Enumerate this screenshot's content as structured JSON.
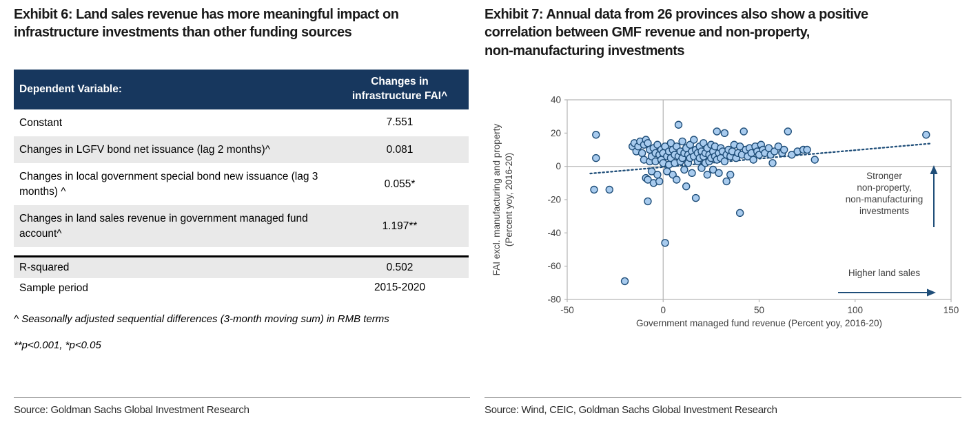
{
  "left": {
    "title_lines": [
      "Exhibit 6: Land sales revenue has more meaningful impact on",
      "infrastructure investments than other funding sources"
    ],
    "table": {
      "header": {
        "label": "Dependent Variable:",
        "value": "Changes in infrastructure FAI^"
      },
      "rows": [
        {
          "label": "Constant",
          "value": "7.551"
        },
        {
          "label": "Changes in LGFV bond net issuance (lag 2 months)^",
          "value": "0.081"
        },
        {
          "label": "Changes in local government special bond new issuance (lag 3 months) ^",
          "value": "0.055*"
        },
        {
          "label": "Changes in land sales revenue in government managed fund account^",
          "value": "1.197**"
        }
      ],
      "stats": [
        {
          "label": "R-squared",
          "value": "0.502"
        },
        {
          "label": "Sample period",
          "value": "2015-2020"
        }
      ]
    },
    "footnotes": [
      "^ Seasonally adjusted sequential differences (3-month moving sum) in RMB terms",
      "**p<0.001, *p<0.05"
    ],
    "source": "Source: Goldman Sachs Global Investment Research"
  },
  "right": {
    "title_lines": [
      "Exhibit 7: Annual data from 26 provinces also show a positive",
      "correlation between GMF revenue and non-property,",
      "non-manufacturing investments"
    ],
    "source": "Source: Wind, CEIC, Goldman Sachs Global Investment Research"
  },
  "chart_data": {
    "type": "scatter",
    "title": "",
    "xlabel": "Government managed fund revenue (Percent yoy, 2016-20)",
    "ylabel_lines": [
      "FAI excl. manufacturing and property",
      "(Percent yoy, 2016-20)"
    ],
    "xlim": [
      -50,
      150
    ],
    "ylim": [
      -80,
      40
    ],
    "xticks": [
      -50,
      0,
      50,
      100,
      150
    ],
    "yticks": [
      40,
      20,
      0,
      -20,
      -40,
      -60,
      -80
    ],
    "grid": "zero-lines-only",
    "legend": "none",
    "trendline": {
      "style": "dotted",
      "x1": -38,
      "y1": -4.3,
      "x2": 140,
      "y2": 13.8
    },
    "annotations": [
      {
        "id": "stronger",
        "lines": [
          "Stronger",
          "non-property,",
          "non-manufacturing",
          "investments"
        ],
        "arrow": "up"
      },
      {
        "id": "higher",
        "lines": [
          "Higher land sales"
        ],
        "arrow": "right"
      }
    ],
    "colors": {
      "point_fill": "#a8cbee",
      "point_stroke": "#1f4e79",
      "trend": "#1f4e79",
      "arrow": "#1f4e79",
      "grid": "#b3b3b3",
      "axis_text": "#404040"
    },
    "points": [
      [
        -35,
        19
      ],
      [
        -35,
        5
      ],
      [
        -36,
        -14
      ],
      [
        -28,
        -14
      ],
      [
        -20,
        -69
      ],
      [
        -16,
        12
      ],
      [
        -15,
        14
      ],
      [
        -14,
        9
      ],
      [
        -13,
        12
      ],
      [
        -12,
        15
      ],
      [
        -11,
        8
      ],
      [
        -10,
        13
      ],
      [
        -10,
        4
      ],
      [
        -9,
        16
      ],
      [
        -9,
        -7
      ],
      [
        -8,
        14
      ],
      [
        -8,
        -8
      ],
      [
        -7,
        10
      ],
      [
        -7,
        3
      ],
      [
        -6,
        6
      ],
      [
        -6,
        -3
      ],
      [
        -5,
        11
      ],
      [
        -5,
        -10
      ],
      [
        -4,
        8
      ],
      [
        -4,
        3
      ],
      [
        -3,
        13
      ],
      [
        -3,
        -5
      ],
      [
        -2,
        7
      ],
      [
        -2,
        -9
      ],
      [
        -1,
        10
      ],
      [
        -1,
        4
      ],
      [
        -8,
        -21
      ],
      [
        0,
        8
      ],
      [
        0,
        2
      ],
      [
        1,
        12
      ],
      [
        1,
        -46
      ],
      [
        2,
        6
      ],
      [
        2,
        -3
      ],
      [
        3,
        9
      ],
      [
        3,
        1
      ],
      [
        4,
        14
      ],
      [
        4,
        5
      ],
      [
        5,
        10
      ],
      [
        5,
        -5
      ],
      [
        6,
        7
      ],
      [
        6,
        2
      ],
      [
        7,
        12
      ],
      [
        7,
        -8
      ],
      [
        8,
        25
      ],
      [
        8,
        6
      ],
      [
        9,
        9
      ],
      [
        9,
        3
      ],
      [
        10,
        15
      ],
      [
        10,
        5
      ],
      [
        11,
        8
      ],
      [
        11,
        -2
      ],
      [
        12,
        11
      ],
      [
        12,
        -12
      ],
      [
        13,
        7
      ],
      [
        13,
        2
      ],
      [
        14,
        13
      ],
      [
        14,
        5
      ],
      [
        15,
        9
      ],
      [
        15,
        -4
      ],
      [
        16,
        16
      ],
      [
        16,
        6
      ],
      [
        17,
        10
      ],
      [
        17,
        -19
      ],
      [
        18,
        8
      ],
      [
        18,
        3
      ],
      [
        19,
        12
      ],
      [
        19,
        5
      ],
      [
        20,
        9
      ],
      [
        20,
        -1
      ],
      [
        21,
        14
      ],
      [
        21,
        6
      ],
      [
        22,
        8
      ],
      [
        22,
        2
      ],
      [
        23,
        11
      ],
      [
        23,
        -5
      ],
      [
        24,
        7
      ],
      [
        24,
        3
      ],
      [
        25,
        13
      ],
      [
        25,
        5
      ],
      [
        26,
        9
      ],
      [
        26,
        -2
      ],
      [
        27,
        12
      ],
      [
        27,
        6
      ],
      [
        28,
        21
      ],
      [
        28,
        4
      ],
      [
        29,
        8
      ],
      [
        29,
        -4
      ],
      [
        30,
        11
      ],
      [
        30,
        5
      ],
      [
        31,
        9
      ],
      [
        32,
        20
      ],
      [
        32,
        3
      ],
      [
        33,
        7
      ],
      [
        33,
        -9
      ],
      [
        34,
        10
      ],
      [
        35,
        6
      ],
      [
        35,
        -5
      ],
      [
        36,
        9
      ],
      [
        37,
        13
      ],
      [
        38,
        5
      ],
      [
        39,
        8
      ],
      [
        40,
        -28
      ],
      [
        40,
        12
      ],
      [
        41,
        7
      ],
      [
        42,
        21
      ],
      [
        43,
        10
      ],
      [
        44,
        6
      ],
      [
        45,
        11
      ],
      [
        46,
        8
      ],
      [
        47,
        4
      ],
      [
        48,
        12
      ],
      [
        49,
        9
      ],
      [
        50,
        7
      ],
      [
        51,
        13
      ],
      [
        52,
        10
      ],
      [
        53,
        8
      ],
      [
        55,
        11
      ],
      [
        56,
        7
      ],
      [
        57,
        2
      ],
      [
        58,
        9
      ],
      [
        60,
        12
      ],
      [
        62,
        8
      ],
      [
        63,
        10
      ],
      [
        65,
        21
      ],
      [
        67,
        7
      ],
      [
        70,
        9
      ],
      [
        73,
        10
      ],
      [
        75,
        10
      ],
      [
        79,
        4
      ],
      [
        137,
        19
      ]
    ]
  }
}
